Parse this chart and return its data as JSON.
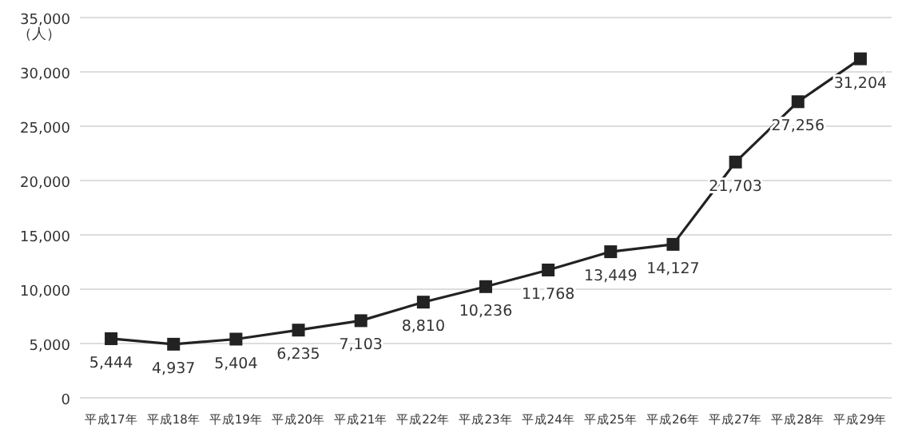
{
  "chart_data": {
    "type": "line",
    "ylabel": "（人）",
    "categories": [
      "平成17年",
      "平成18年",
      "平成19年",
      "平成20年",
      "平成21年",
      "平成22年",
      "平成23年",
      "平成24年",
      "平成25年",
      "平成26年",
      "平成27年",
      "平成28年",
      "平成29年"
    ],
    "values": [
      5444,
      4937,
      5404,
      6235,
      7103,
      8810,
      10236,
      11768,
      13449,
      14127,
      21703,
      27256,
      31204
    ],
    "value_labels": [
      "5,444",
      "4,937",
      "5,404",
      "6,235",
      "7,103",
      "8,810",
      "10,236",
      "11,768",
      "13,449",
      "14,127",
      "21,703",
      "27,256",
      "31,204"
    ],
    "color": "#222222",
    "marker": "square",
    "line_style": "solid",
    "grid": "y",
    "ylim": [
      0,
      35000
    ],
    "yticks": [
      {
        "value": 0,
        "label": "0"
      },
      {
        "value": 5000,
        "label": "5,000"
      },
      {
        "value": 10000,
        "label": "10,000"
      },
      {
        "value": 15000,
        "label": "15,000"
      },
      {
        "value": 20000,
        "label": "20,000"
      },
      {
        "value": 25000,
        "label": "25,000"
      },
      {
        "value": 30000,
        "label": "30,000"
      },
      {
        "value": 35000,
        "label": "35,000"
      }
    ]
  }
}
